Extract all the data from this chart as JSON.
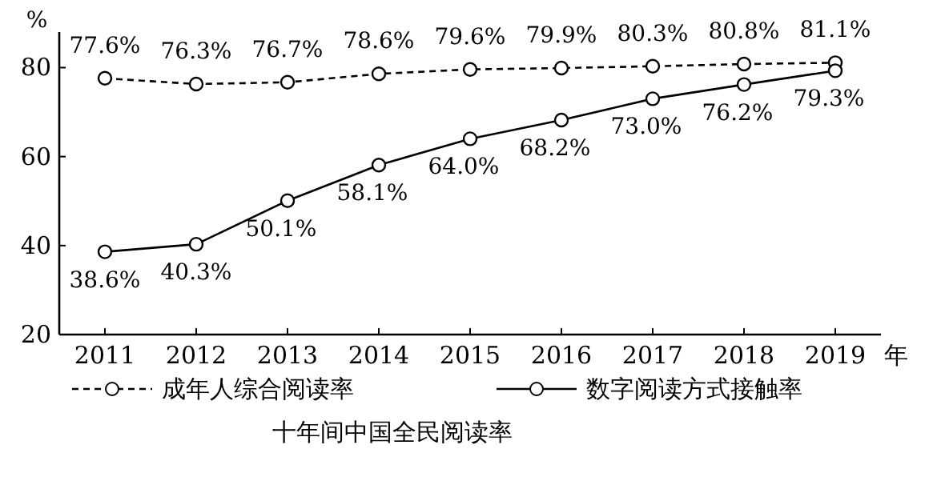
{
  "chart_data": {
    "type": "line",
    "title": "十年间中国全民阅读率",
    "ylabel": "%",
    "xlabel": "年",
    "categories": [
      "2011",
      "2012",
      "2013",
      "2014",
      "2015",
      "2016",
      "2017",
      "2018",
      "2019"
    ],
    "series": [
      {
        "name": "成年人综合阅读率",
        "color": "#000000",
        "line_style": "dashed",
        "values": [
          77.6,
          76.3,
          76.7,
          78.6,
          79.6,
          79.9,
          80.3,
          80.8,
          81.1
        ],
        "value_labels": [
          "77.6%",
          "76.3%",
          "76.7%",
          "78.6%",
          "79.6%",
          "79.9%",
          "80.3%",
          "80.8%",
          "81.1%"
        ]
      },
      {
        "name": "数字阅读方式接触率",
        "color": "#000000",
        "line_style": "solid",
        "values": [
          38.6,
          40.3,
          50.1,
          58.1,
          64.0,
          68.2,
          73.0,
          76.2,
          79.3
        ],
        "value_labels": [
          "38.6%",
          "40.3%",
          "50.1%",
          "58.1%",
          "64.0%",
          "68.2%",
          "73.0%",
          "76.2%",
          "79.3%"
        ]
      }
    ],
    "ylim": [
      20,
      88
    ],
    "yticks": [
      20,
      40,
      60,
      80
    ],
    "marker": "circle",
    "grid": false,
    "legend": "bottom"
  }
}
